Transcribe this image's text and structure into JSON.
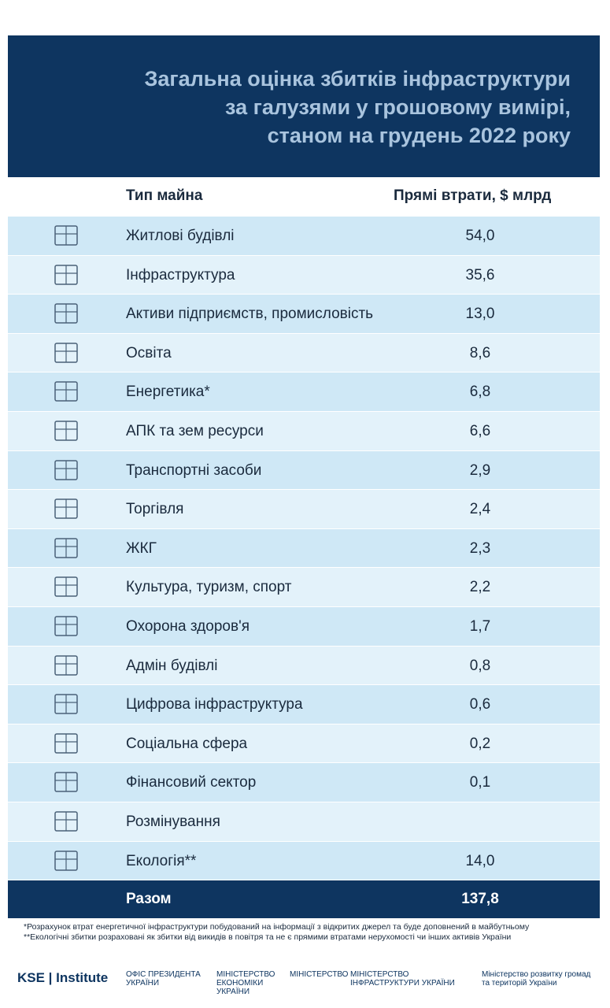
{
  "header": {
    "title": [
      "Загальна оцінка збитків інфраструктури",
      "за галузями у грошовому вимірі,",
      "станом на грудень 2022 року"
    ]
  },
  "table": {
    "columns": [
      "Тип майна",
      "Прямі втрати, $ млрд"
    ],
    "rows": [
      [
        "Житлові будівлі",
        "54,0"
      ],
      [
        "Інфраструктура",
        "35,6"
      ],
      [
        "Активи підприємств, промисловість",
        "13,0"
      ],
      [
        "Освіта",
        "8,6"
      ],
      [
        "Енергетика*",
        "6,8"
      ],
      [
        "АПК та зем ресурси",
        "6,6"
      ],
      [
        "Транспортні засоби",
        "2,9"
      ],
      [
        "Торгівля",
        "2,4"
      ],
      [
        "ЖКГ",
        "2,3"
      ],
      [
        "Культура, туризм, спорт",
        "2,2"
      ],
      [
        "Охорона здоров'я",
        "1,7"
      ],
      [
        "Адмін будівлі",
        "0,8"
      ],
      [
        "Цифрова інфраструктура",
        "0,6"
      ],
      [
        "Соціальна сфера",
        "0,2"
      ],
      [
        "Фінансовий сектор",
        "0,1"
      ],
      [
        "Розмінування",
        null
      ],
      [
        "Екологія**",
        "14,0"
      ]
    ],
    "total": [
      "Разом",
      "137,8"
    ]
  },
  "footnotes": [
    "*Розрахунок втрат енергетичної інфраструктури побудований на інформації з відкритих джерел та буде доповнений в майбутньому",
    "**Екологічні збитки розраховані як збитки від викидів в повітря та не є прямими втратами нерухомості чи інших активів України"
  ],
  "logos": [
    "KSE | Institute",
    "ОФІС ПРЕЗИДЕНТА УКРАЇНИ",
    "МІНІСТЕРСТВО ЕКОНОМІКИ УКРАЇНИ",
    "МІНІСТЕРСТВО",
    "МІНІСТЕРСТВО ІНФРАСТРУКТУРИ УКРАЇНИ",
    "Міністерство розвитку громад та територій України"
  ]
}
